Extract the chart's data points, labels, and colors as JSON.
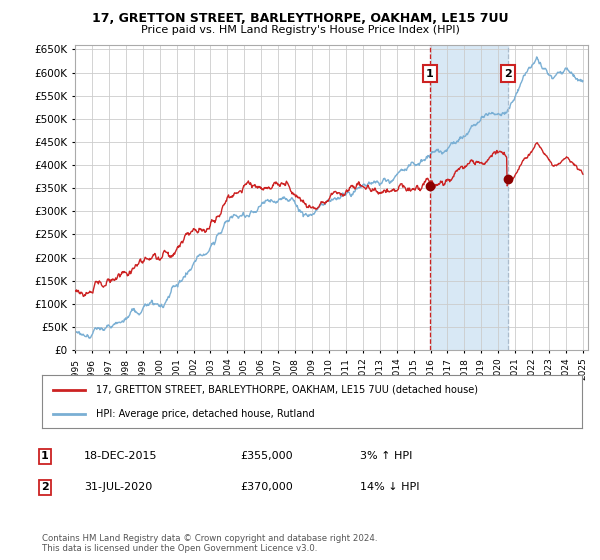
{
  "title": "17, GRETTON STREET, BARLEYTHORPE, OAKHAM, LE15 7UU",
  "subtitle": "Price paid vs. HM Land Registry's House Price Index (HPI)",
  "legend_line1": "17, GRETTON STREET, BARLEYTHORPE, OAKHAM, LE15 7UU (detached house)",
  "legend_line2": "HPI: Average price, detached house, Rutland",
  "annotation1_label": "1",
  "annotation1_date": "18-DEC-2015",
  "annotation1_price": "£355,000",
  "annotation1_hpi": "3% ↑ HPI",
  "annotation1_year": 2015.96,
  "annotation1_value": 355000,
  "annotation2_label": "2",
  "annotation2_date": "31-JUL-2020",
  "annotation2_price": "£370,000",
  "annotation2_hpi": "14% ↓ HPI",
  "annotation2_year": 2020.58,
  "annotation2_value": 370000,
  "price_color": "#cc2222",
  "hpi_color": "#7aafd4",
  "shade_color": "#d8e8f5",
  "annotation_box_color": "#cc2222",
  "vline1_color": "#cc2222",
  "vline2_color": "#aabbcc",
  "marker_color": "#8b0000",
  "background_color": "#ffffff",
  "plot_bg_color": "#ffffff",
  "grid_color": "#cccccc",
  "footer": "Contains HM Land Registry data © Crown copyright and database right 2024.\nThis data is licensed under the Open Government Licence v3.0.",
  "ylim": [
    0,
    660000
  ],
  "yticks": [
    0,
    50000,
    100000,
    150000,
    200000,
    250000,
    300000,
    350000,
    400000,
    450000,
    500000,
    550000,
    600000,
    650000
  ],
  "start_year": 1995,
  "end_year": 2025
}
